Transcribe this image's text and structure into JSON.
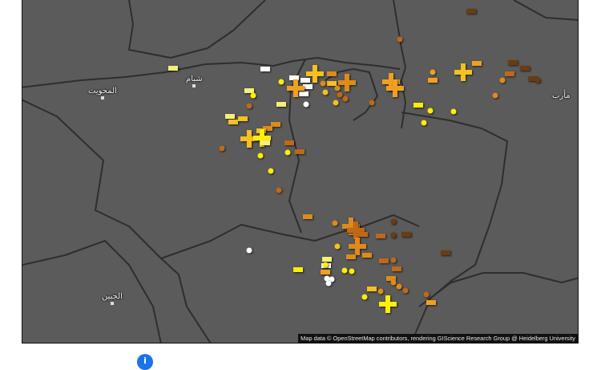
{
  "map": {
    "background_color": "#5b5b5b",
    "boundary_color": "#2e2e2e",
    "places": [
      {
        "name": "المحويت"
      },
      {
        "name": "شبام"
      },
      {
        "name": "مأرب"
      },
      {
        "name": "الجبين"
      }
    ],
    "attribution": "Map data © OpenStreetMap contributors, rendering GIScience Research Group @ Heidelberg University",
    "marker_types": [
      "plus",
      "dash",
      "dot"
    ],
    "marker_colors": [
      "#ffffff",
      "#f5ef7a",
      "#ffee00",
      "#f5c020",
      "#f0a020",
      "#e08a1a",
      "#c06818",
      "#6a3c10"
    ]
  },
  "footer": {
    "info_icon": "info-icon",
    "info_color": "#1a73e8",
    "info_glyph": "i"
  }
}
